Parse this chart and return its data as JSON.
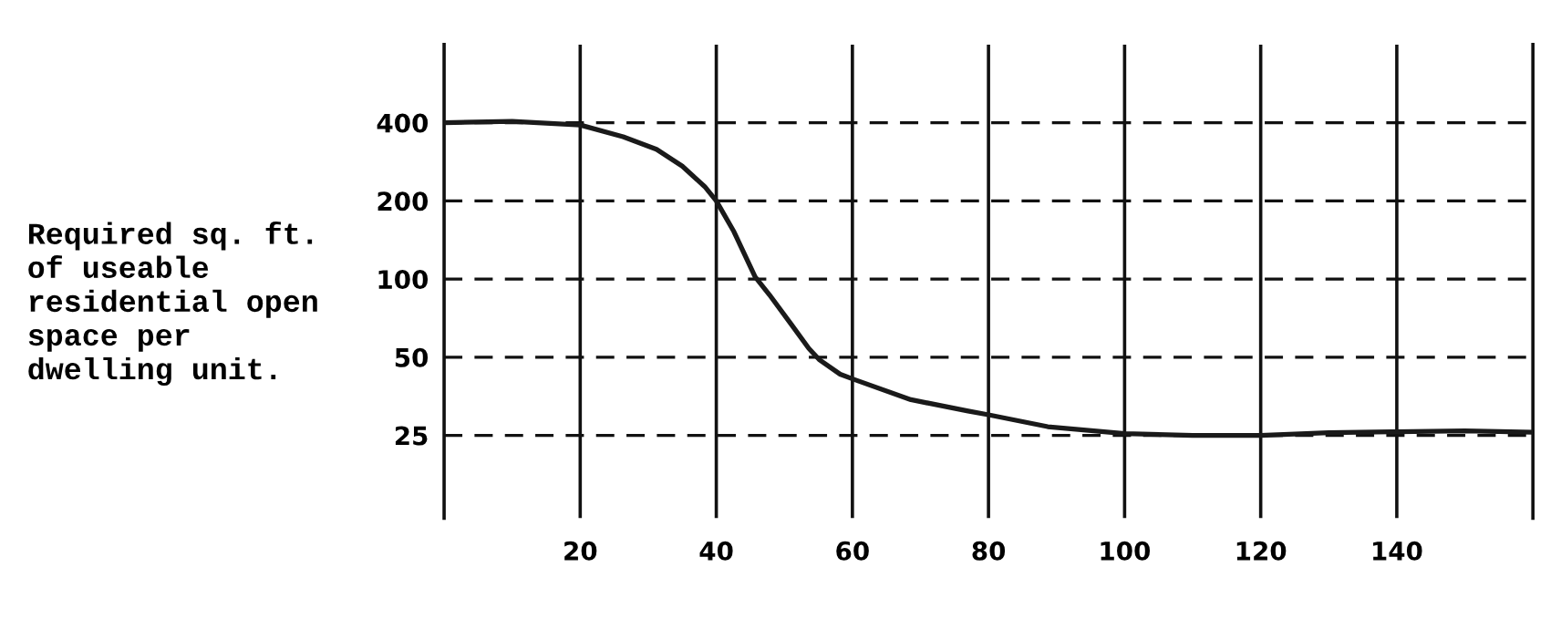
{
  "chart_data": {
    "type": "line",
    "ylabel": "Required sq. ft.\nof useable\nresidential open\nspace per\ndwelling unit.",
    "x": [
      0,
      10,
      20,
      26.3,
      31.2,
      35,
      38.3,
      40,
      42.6,
      45.7,
      47.8,
      51,
      53.6,
      55.1,
      58.2,
      60.3,
      68.6,
      77,
      80,
      88.7,
      100,
      110,
      120,
      130,
      140,
      150,
      160
    ],
    "values": [
      400,
      405,
      392,
      353,
      316,
      272,
      227,
      200,
      152,
      102,
      87,
      67,
      54,
      49,
      43,
      41,
      34.3,
      31,
      30,
      27,
      25.4,
      25,
      25,
      25.6,
      25.8,
      26,
      25.7
    ],
    "color": "#1a1a1a",
    "xlim": [
      0,
      160
    ],
    "xticks": [
      20,
      40,
      60,
      80,
      100,
      120,
      140
    ],
    "ylim": [
      12,
      800
    ],
    "yticks": [
      25,
      50,
      100,
      200,
      400
    ],
    "log": "y",
    "grid": true
  }
}
